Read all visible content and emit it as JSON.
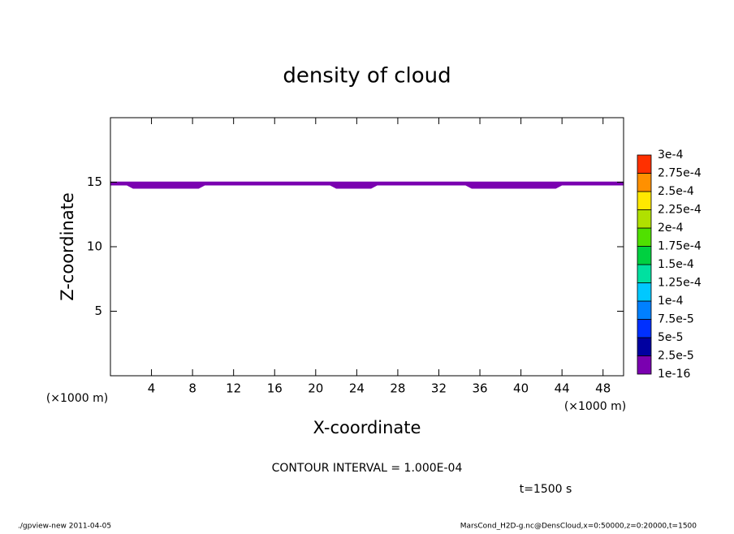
{
  "chart_data": {
    "type": "contour",
    "title": "density of cloud",
    "x_label": "X-coordinate",
    "y_label": "Z-coordinate",
    "x_unit": "(×1000 m)",
    "contour_note": "CONTOUR INTERVAL = 1.000E-04",
    "time_note": "t=1500 s",
    "footer_left": "./gpview-new  2011-04-05",
    "footer_right": "MarsCond_H2D-g.nc@DensCloud,x=0:50000,z=0:20000,t=1500",
    "xlim": [
      0,
      50
    ],
    "ylim": [
      0,
      20
    ],
    "xticks": [
      4,
      8,
      12,
      16,
      20,
      24,
      28,
      32,
      36,
      40,
      44,
      48
    ],
    "yticks": [
      5,
      10,
      15
    ],
    "region": {
      "color": "#7a00b0",
      "x": [
        0,
        1.6,
        2.2,
        8.6,
        9.2,
        21.4,
        22,
        25.4,
        26,
        34.6,
        35.2,
        43.4,
        44,
        50
      ],
      "top": [
        15.05,
        15.05,
        15.05,
        15.05,
        15.05,
        15.05,
        15.05,
        15.05,
        15.05,
        15.05,
        15.05,
        15.05,
        15.05,
        15.05
      ],
      "bottom": [
        14.75,
        14.75,
        14.5,
        14.5,
        14.75,
        14.75,
        14.5,
        14.5,
        14.75,
        14.75,
        14.5,
        14.5,
        14.75,
        14.75
      ]
    },
    "colorbar": {
      "levels": [
        {
          "value": 1e-16,
          "label": "1e-16"
        },
        {
          "value": 2.5e-05,
          "label": "2.5e-5"
        },
        {
          "value": 5e-05,
          "label": "5e-5"
        },
        {
          "value": 7.5e-05,
          "label": "7.5e-5"
        },
        {
          "value": 0.0001,
          "label": "1e-4"
        },
        {
          "value": 0.000125,
          "label": "1.25e-4"
        },
        {
          "value": 0.00015,
          "label": "1.5e-4"
        },
        {
          "value": 0.000175,
          "label": "1.75e-4"
        },
        {
          "value": 0.0002,
          "label": "2e-4"
        },
        {
          "value": 0.000225,
          "label": "2.25e-4"
        },
        {
          "value": 0.00025,
          "label": "2.5e-4"
        },
        {
          "value": 0.000275,
          "label": "2.75e-4"
        },
        {
          "value": 0.0003,
          "label": "3e-4"
        }
      ],
      "colors": [
        "#7a00b0",
        "#0000a0",
        "#0030ff",
        "#0080ff",
        "#00c8ff",
        "#00e0a0",
        "#00d040",
        "#50e000",
        "#b0e000",
        "#ffe800",
        "#ff9000",
        "#ff3000",
        "#ff9090"
      ]
    }
  }
}
